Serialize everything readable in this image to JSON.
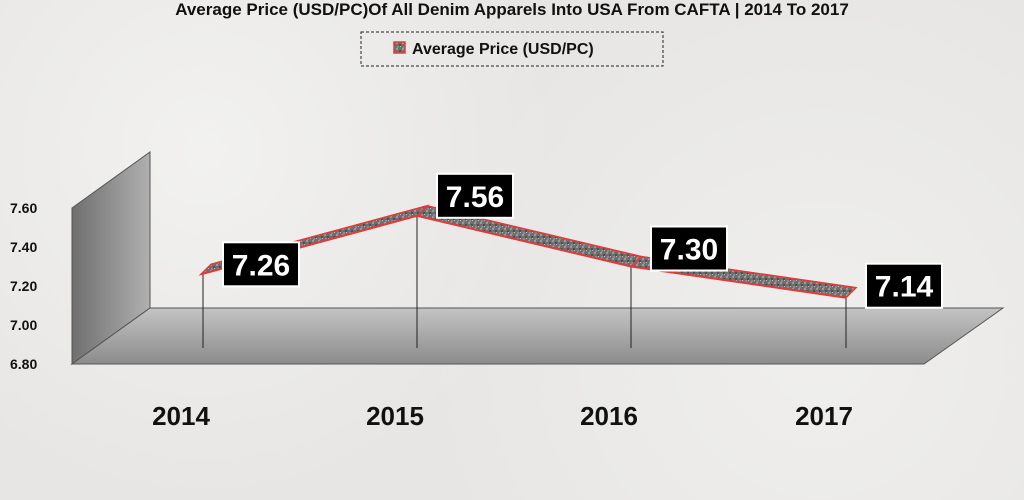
{
  "chart_data": {
    "type": "line",
    "title": "Average Price (USD/PC)Of All Denim Apparels Into USA From CAFTA | 2014 To 2017",
    "categories": [
      "2014",
      "2015",
      "2016",
      "2017"
    ],
    "series": [
      {
        "name": "Average Price (USD/PC)",
        "values": [
          7.26,
          7.56,
          7.3,
          7.14
        ]
      }
    ],
    "data_labels": [
      "7.26",
      "7.56",
      "7.30",
      "7.14"
    ],
    "y_ticks": [
      "6.80",
      "7.00",
      "7.20",
      "7.40",
      "7.60"
    ],
    "ylim": [
      6.8,
      7.6
    ],
    "legend_position": "top-center",
    "grid": false,
    "style": "3d-line",
    "colors": {
      "ribbon_fill": "#7a7a7a",
      "ribbon_edge": "#e23a3a",
      "label_bg": "#000000",
      "label_text": "#ffffff",
      "wall": "#9a9a9a",
      "floor": "#a8a8a8"
    }
  }
}
